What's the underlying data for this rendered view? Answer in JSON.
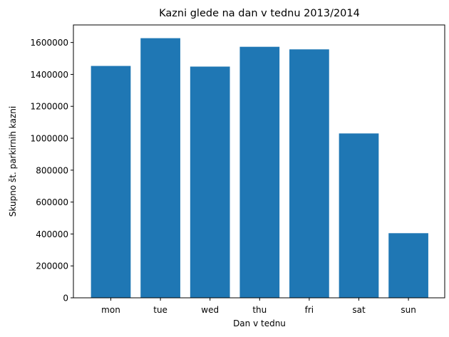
{
  "chart_data": {
    "type": "bar",
    "title": "Kazni glede na dan v tednu 2013/2014",
    "xlabel": "Dan v tednu",
    "ylabel": "Skupno št. parkirnih kazni",
    "categories": [
      "mon",
      "tue",
      "wed",
      "thu",
      "fri",
      "sat",
      "sun"
    ],
    "values": [
      1453000,
      1627000,
      1449000,
      1573000,
      1557000,
      1030000,
      405000
    ],
    "ylim": [
      0,
      1710000
    ],
    "yticks": [
      0,
      200000,
      400000,
      600000,
      800000,
      1000000,
      1200000,
      1400000,
      1600000
    ],
    "ytick_labels": [
      "0",
      "200000",
      "400000",
      "600000",
      "800000",
      "1000000",
      "1200000",
      "1400000",
      "1600000"
    ],
    "bar_color": "#1f77b4",
    "grid": false,
    "legend": "none"
  }
}
